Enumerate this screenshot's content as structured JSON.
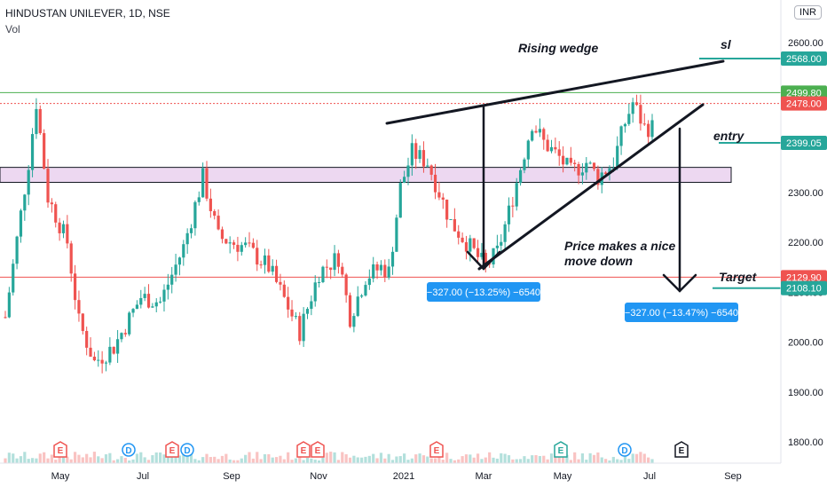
{
  "header": {
    "title": "HINDUSTAN UNILEVER, 1D, NSE",
    "volume_label": "Vol",
    "currency": "INR"
  },
  "chart_data": {
    "type": "candlestick",
    "ylim": [
      1775,
      2640
    ],
    "y_ticks": [
      1800,
      1900,
      2000,
      2100,
      2200,
      2300,
      2400,
      2500,
      2600
    ],
    "y_tick_labels": [
      "1800.00",
      "1900.00",
      "2000.00",
      "2100.00",
      "2200.00",
      "2300.00",
      "2400.00",
      "2500.00",
      "2600.00"
    ],
    "x_labels": [
      "May",
      "Jul",
      "Sep",
      "Nov",
      "2021",
      "Mar",
      "May",
      "Jul",
      "Sep"
    ],
    "series": [
      {
        "name": "HINDUSTAN UNILEVER",
        "path": [
          {
            "i": 0,
            "v": 2050
          },
          {
            "i": 6,
            "v": 2360
          },
          {
            "i": 8,
            "v": 2480
          },
          {
            "i": 11,
            "v": 2290
          },
          {
            "i": 16,
            "v": 2200
          },
          {
            "i": 19,
            "v": 2040
          },
          {
            "i": 23,
            "v": 1960
          },
          {
            "i": 28,
            "v": 1990
          },
          {
            "i": 35,
            "v": 2090
          },
          {
            "i": 40,
            "v": 2080
          },
          {
            "i": 46,
            "v": 2190
          },
          {
            "i": 51,
            "v": 2330
          },
          {
            "i": 55,
            "v": 2210
          },
          {
            "i": 62,
            "v": 2190
          },
          {
            "i": 68,
            "v": 2150
          },
          {
            "i": 73,
            "v": 2070
          },
          {
            "i": 76,
            "v": 2020
          },
          {
            "i": 81,
            "v": 2140
          },
          {
            "i": 86,
            "v": 2170
          },
          {
            "i": 89,
            "v": 2050
          },
          {
            "i": 93,
            "v": 2130
          },
          {
            "i": 97,
            "v": 2150
          },
          {
            "i": 99,
            "v": 2140
          },
          {
            "i": 102,
            "v": 2310
          },
          {
            "i": 105,
            "v": 2380
          },
          {
            "i": 109,
            "v": 2360
          },
          {
            "i": 112,
            "v": 2300
          },
          {
            "i": 115,
            "v": 2240
          },
          {
            "i": 120,
            "v": 2190
          },
          {
            "i": 124,
            "v": 2150
          },
          {
            "i": 127,
            "v": 2180
          },
          {
            "i": 130,
            "v": 2260
          },
          {
            "i": 133,
            "v": 2350
          },
          {
            "i": 136,
            "v": 2440
          },
          {
            "i": 139,
            "v": 2400
          },
          {
            "i": 143,
            "v": 2370
          },
          {
            "i": 146,
            "v": 2340
          },
          {
            "i": 150,
            "v": 2360
          },
          {
            "i": 153,
            "v": 2330
          },
          {
            "i": 157,
            "v": 2360
          },
          {
            "i": 160,
            "v": 2440
          },
          {
            "i": 162,
            "v": 2480
          },
          {
            "i": 165,
            "v": 2430
          }
        ]
      }
    ],
    "horizontal_levels": [
      {
        "value": 2499.8,
        "label": "2499.80",
        "color": "#4caf50",
        "style": "solid"
      },
      {
        "value": 2478.0,
        "label": "2478.00",
        "color": "#ef5350",
        "style": "dotted"
      },
      {
        "value": 2129.9,
        "label": "2129.90",
        "color": "#ef5350",
        "style": "solid"
      }
    ],
    "marker_levels": [
      {
        "value": 2568.0,
        "label": "2568.00",
        "color": "#26a69a"
      },
      {
        "value": 2399.05,
        "label": "2399.05",
        "color": "#26a69a"
      },
      {
        "value": 2108.1,
        "label": "2108.10",
        "color": "#26a69a"
      }
    ],
    "zone": {
      "from": 2320,
      "to": 2350,
      "color": "#e1bee7"
    },
    "annotations": [
      "Rising wedge",
      "sl",
      "entry",
      "Target",
      "Price makes a nice",
      "move down"
    ],
    "measurements": [
      "−327.00 (−13.25%) −6540",
      "−327.00 (−13.47%) −6540"
    ],
    "event_markers": [
      "E",
      "E",
      "E",
      "D",
      "D",
      "E",
      "D",
      "E",
      "D",
      "E",
      "E",
      "E",
      "D",
      "E"
    ],
    "colors": {
      "up": "#26a69a",
      "down": "#ef5350",
      "label": "#2196f3"
    }
  }
}
